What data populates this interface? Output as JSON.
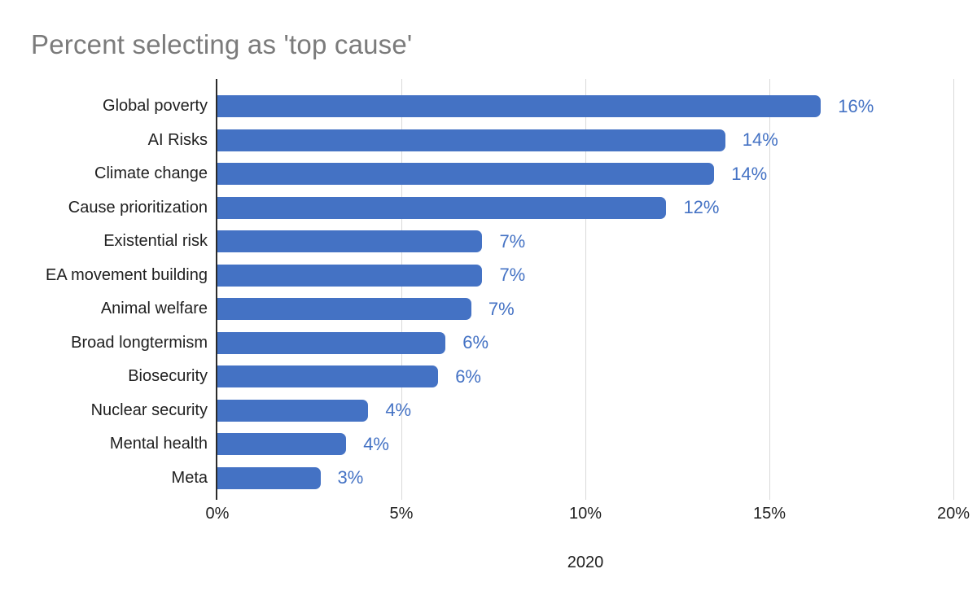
{
  "title": "Percent selecting as 'top cause'",
  "chart_data": {
    "type": "bar",
    "orientation": "horizontal",
    "title": "Percent selecting as 'top cause'",
    "xlabel": "2020",
    "ylabel": "",
    "xlim": [
      0,
      20
    ],
    "grid": "vertical",
    "legend": "none",
    "x_ticks": [
      {
        "value": 0,
        "label": "0%"
      },
      {
        "value": 5,
        "label": "5%"
      },
      {
        "value": 10,
        "label": "10%"
      },
      {
        "value": 15,
        "label": "15%"
      },
      {
        "value": 20,
        "label": "20%"
      }
    ],
    "bars": [
      {
        "category": "Global poverty",
        "value": 16.4,
        "label": "16%"
      },
      {
        "category": "AI Risks",
        "value": 13.8,
        "label": "14%"
      },
      {
        "category": "Climate change",
        "value": 13.5,
        "label": "14%"
      },
      {
        "category": "Cause prioritization",
        "value": 12.2,
        "label": "12%"
      },
      {
        "category": "Existential risk",
        "value": 7.2,
        "label": "7%"
      },
      {
        "category": "EA movement building",
        "value": 7.2,
        "label": "7%"
      },
      {
        "category": "Animal welfare",
        "value": 6.9,
        "label": "7%"
      },
      {
        "category": "Broad longtermism",
        "value": 6.2,
        "label": "6%"
      },
      {
        "category": "Biosecurity",
        "value": 6.0,
        "label": "6%"
      },
      {
        "category": "Nuclear security",
        "value": 4.1,
        "label": "4%"
      },
      {
        "category": "Mental health",
        "value": 3.5,
        "label": "4%"
      },
      {
        "category": "Meta",
        "value": 2.8,
        "label": "3%"
      }
    ],
    "colors": {
      "bar": "#4472C4",
      "value_label": "#4472C4",
      "title": "#7b7b7b",
      "axis_text": "#212121",
      "gridline": "#d9d9d9",
      "axis_line": "#2b2b2b",
      "background": "#ffffff"
    }
  }
}
